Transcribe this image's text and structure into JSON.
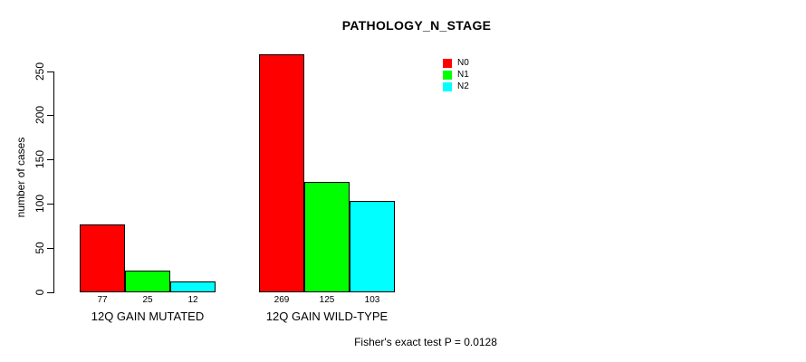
{
  "title": "PATHOLOGY_N_STAGE",
  "footer": "Fisher's exact test P = 0.0128",
  "legend": {
    "items": [
      {
        "label": "N0",
        "color": "#ff0000"
      },
      {
        "label": "N1",
        "color": "#00ff00"
      },
      {
        "label": "N2",
        "color": "#00ffff"
      }
    ]
  },
  "chart_data": {
    "type": "bar",
    "title": "PATHOLOGY_N_STAGE",
    "xlabel": "",
    "ylabel": "number of cases",
    "ylim": [
      0,
      250
    ],
    "yticks": [
      0,
      50,
      100,
      150,
      200,
      250
    ],
    "grid": false,
    "legend_position": "top-right-inside",
    "categories": [
      "12Q GAIN MUTATED",
      "12Q GAIN WILD-TYPE"
    ],
    "series": [
      {
        "name": "N0",
        "color": "#ff0000",
        "values": [
          77,
          269
        ]
      },
      {
        "name": "N1",
        "color": "#00ff00",
        "values": [
          25,
          125
        ]
      },
      {
        "name": "N2",
        "color": "#00ffff",
        "values": [
          12,
          103
        ]
      }
    ],
    "bar_value_labels": [
      [
        77,
        25,
        12
      ],
      [
        269,
        125,
        103
      ]
    ],
    "annotation": "Fisher's exact test P = 0.0128"
  }
}
